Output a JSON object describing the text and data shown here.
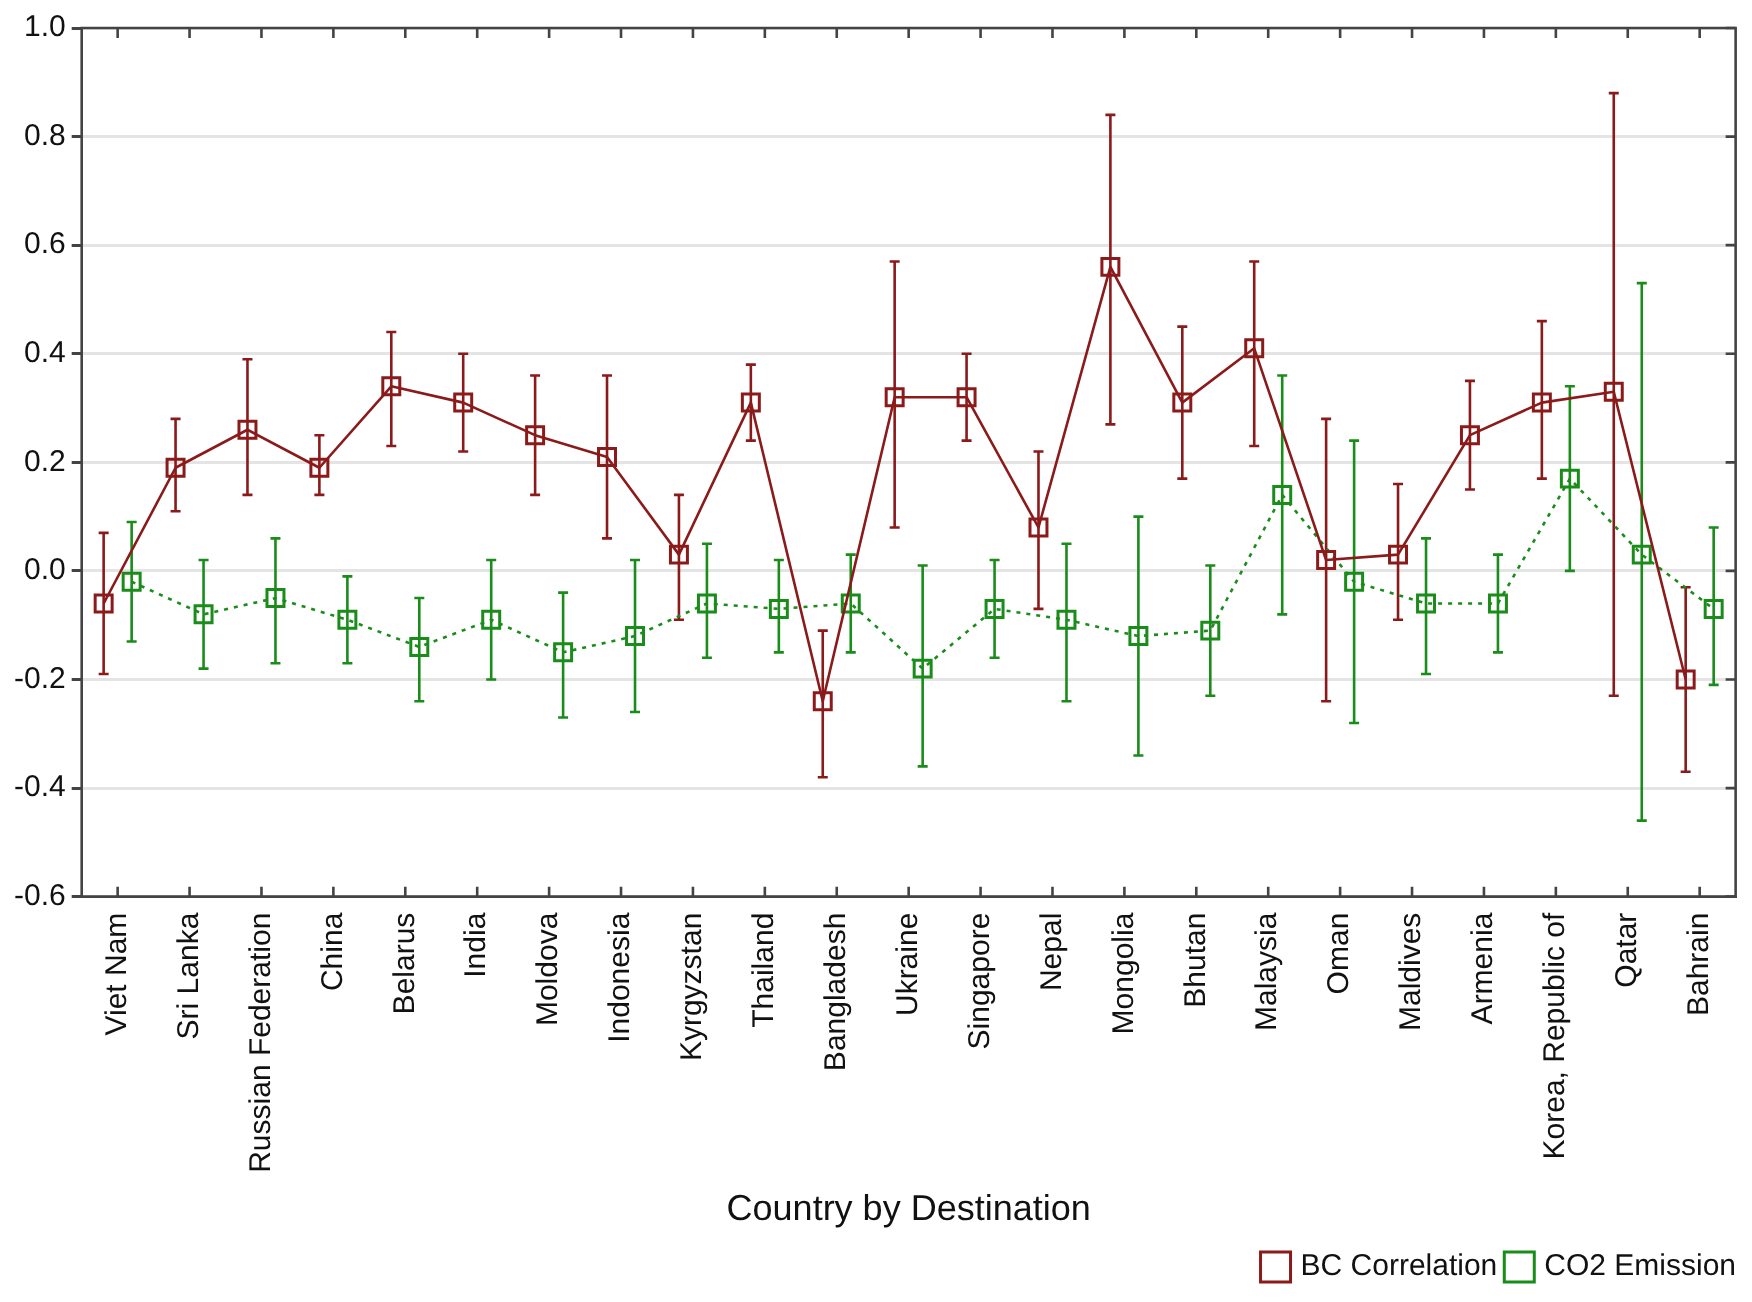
{
  "chart_data": {
    "type": "line",
    "xlabel": "Country by Destination",
    "categories": [
      "Viet Nam",
      "Sri Lanka",
      "Russian Federation",
      "China",
      "Belarus",
      "India",
      "Moldova",
      "Indonesia",
      "Kyrgyzstan",
      "Thailand",
      "Bangladesh",
      "Ukraine",
      "Singapore",
      "Nepal",
      "Mongolia",
      "Bhutan",
      "Malaysia",
      "Oman",
      "Maldives",
      "Armenia",
      "Korea, Republic of",
      "Qatar",
      "Bahrain"
    ],
    "series": [
      {
        "name": "BC Correlation",
        "color": "#8b1a1a",
        "line_style": "solid",
        "values": [
          -0.06,
          0.19,
          0.26,
          0.19,
          0.34,
          0.31,
          0.25,
          0.21,
          0.03,
          0.31,
          -0.24,
          0.32,
          0.32,
          0.08,
          0.56,
          0.31,
          0.41,
          0.02,
          0.03,
          0.25,
          0.31,
          0.33,
          -0.2
        ],
        "errors": [
          [
            -0.19,
            0.07
          ],
          [
            0.11,
            0.28
          ],
          [
            0.14,
            0.39
          ],
          [
            0.14,
            0.25
          ],
          [
            0.23,
            0.44
          ],
          [
            0.22,
            0.4
          ],
          [
            0.14,
            0.36
          ],
          [
            0.06,
            0.36
          ],
          [
            -0.09,
            0.14
          ],
          [
            0.24,
            0.38
          ],
          [
            -0.38,
            -0.11
          ],
          [
            0.08,
            0.57
          ],
          [
            0.24,
            0.4
          ],
          [
            -0.07,
            0.22
          ],
          [
            0.27,
            0.84
          ],
          [
            0.17,
            0.45
          ],
          [
            0.23,
            0.57
          ],
          [
            -0.24,
            0.28
          ],
          [
            -0.09,
            0.16
          ],
          [
            0.15,
            0.35
          ],
          [
            0.17,
            0.46
          ],
          [
            -0.23,
            0.88
          ],
          [
            -0.37,
            -0.03
          ]
        ]
      },
      {
        "name": "CO2 Emission",
        "color": "#1a8c1a",
        "line_style": "dotted",
        "values": [
          -0.02,
          -0.08,
          -0.05,
          -0.09,
          -0.14,
          -0.09,
          -0.15,
          -0.12,
          -0.06,
          -0.07,
          -0.06,
          -0.18,
          -0.07,
          -0.09,
          -0.12,
          -0.11,
          0.14,
          -0.02,
          -0.06,
          -0.06,
          0.17,
          0.03,
          -0.07
        ],
        "errors": [
          [
            -0.13,
            0.09
          ],
          [
            -0.18,
            0.02
          ],
          [
            -0.17,
            0.06
          ],
          [
            -0.17,
            -0.01
          ],
          [
            -0.24,
            -0.05
          ],
          [
            -0.2,
            0.02
          ],
          [
            -0.27,
            -0.04
          ],
          [
            -0.26,
            0.02
          ],
          [
            -0.16,
            0.05
          ],
          [
            -0.15,
            0.02
          ],
          [
            -0.15,
            0.03
          ],
          [
            -0.36,
            0.01
          ],
          [
            -0.16,
            0.02
          ],
          [
            -0.24,
            0.05
          ],
          [
            -0.34,
            0.1
          ],
          [
            -0.23,
            0.01
          ],
          [
            -0.08,
            0.36
          ],
          [
            -0.28,
            0.24
          ],
          [
            -0.19,
            0.06
          ],
          [
            -0.15,
            0.03
          ],
          [
            0.0,
            0.34
          ],
          [
            -0.46,
            0.53
          ],
          [
            -0.21,
            0.08
          ]
        ]
      }
    ],
    "ylim": [
      -0.6,
      1.0
    ],
    "yticks": [
      {
        "value": -0.6,
        "label": "-0.6"
      },
      {
        "value": -0.4,
        "label": "-0.4"
      },
      {
        "value": -0.2,
        "label": "-0.2"
      },
      {
        "value": 0,
        "label": "0.0"
      },
      {
        "value": 0.2,
        "label": "0.2"
      },
      {
        "value": 0.4,
        "label": "0.4"
      },
      {
        "value": 0.6,
        "label": "0.6"
      },
      {
        "value": 0.8,
        "label": "0.8"
      },
      {
        "value": 1.0,
        "label": "1.0"
      }
    ],
    "grid": "y",
    "legend": "bottom right",
    "marker": "square"
  }
}
